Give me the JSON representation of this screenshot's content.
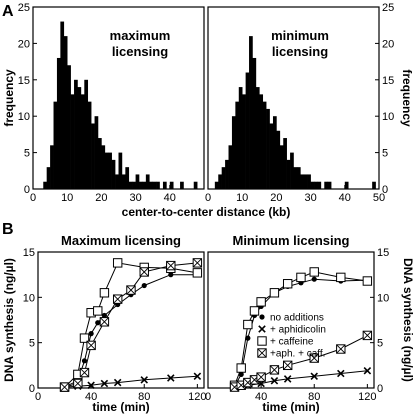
{
  "panel_labels": {
    "a": "A",
    "b": "B"
  },
  "chart_data": [
    {
      "type": "bar",
      "panel": "A-left",
      "title": "maximum licensing",
      "title_lines": [
        "maximum",
        "licensing"
      ],
      "xlabel": "center-to-center distance (kb)",
      "ylabel": "frequency",
      "xlim": [
        0,
        50
      ],
      "ylim": [
        0,
        25
      ],
      "xticks": [
        "0",
        "10",
        "20",
        "30",
        "40"
      ],
      "yticks": [
        "0",
        "5",
        "10",
        "15",
        "20",
        "25"
      ],
      "bin_width": 1,
      "bins": [
        3,
        4,
        5,
        6,
        7,
        8,
        9,
        10,
        11,
        12,
        13,
        14,
        15,
        16,
        17,
        18,
        19,
        20,
        21,
        22,
        23,
        24,
        25,
        26,
        27,
        28,
        29,
        30,
        31,
        32,
        33,
        34,
        35,
        36,
        37,
        38,
        39,
        40,
        41,
        42,
        43,
        44,
        45,
        46,
        47
      ],
      "values": [
        1,
        3,
        6,
        12,
        18,
        23,
        21,
        17,
        13,
        15,
        14,
        13,
        15,
        12,
        9,
        10,
        7,
        6,
        5,
        5,
        4,
        2,
        5,
        2,
        3,
        1,
        1,
        2,
        1,
        1,
        2,
        1,
        1,
        1,
        0,
        1,
        0,
        1,
        0,
        0,
        1,
        0,
        0,
        0,
        1
      ]
    },
    {
      "type": "bar",
      "panel": "A-right",
      "title": "minimum licensing",
      "title_lines": [
        "minimum",
        "licensing"
      ],
      "xlabel": "center-to-center distance (kb)",
      "ylabel": "frequency",
      "xlim": [
        0,
        50
      ],
      "ylim": [
        0,
        25
      ],
      "xticks": [
        "0",
        "10",
        "20",
        "30",
        "40",
        "50"
      ],
      "yticks": [
        "0",
        "5",
        "10",
        "15",
        "20",
        "25"
      ],
      "bin_width": 1,
      "bins": [
        2,
        3,
        4,
        5,
        6,
        7,
        8,
        9,
        10,
        11,
        12,
        13,
        14,
        15,
        16,
        17,
        18,
        19,
        20,
        21,
        22,
        23,
        24,
        25,
        26,
        27,
        28,
        29,
        30,
        31,
        32,
        33,
        34,
        35,
        36,
        37,
        38,
        39,
        40,
        41,
        42,
        43,
        44,
        45,
        46,
        47,
        48,
        49
      ],
      "values": [
        1,
        2,
        3,
        4,
        6,
        10,
        12,
        14,
        13,
        16,
        21,
        18,
        14,
        13,
        12,
        11,
        9,
        10,
        8,
        6,
        7,
        4,
        5,
        3,
        3,
        2,
        2,
        2,
        1,
        1,
        1,
        0,
        1,
        1,
        0,
        0,
        0,
        0,
        1,
        0,
        0,
        0,
        0,
        0,
        0,
        0,
        1,
        0
      ]
    },
    {
      "type": "line",
      "panel": "B-left",
      "title": "Maximum licensing",
      "xlabel": "time (min)",
      "ylabel": "DNA synthesis (ng/µl)",
      "xlim": [
        0,
        125
      ],
      "ylim": [
        0,
        15
      ],
      "xticks": [
        "0",
        "40",
        "80",
        "120"
      ],
      "yticks": [
        "0",
        "5",
        "10",
        "15"
      ],
      "series": [
        {
          "name": "no additions",
          "marker": "dot",
          "x": [
            20,
            30,
            35,
            40,
            45,
            50,
            60,
            70,
            80,
            100,
            120
          ],
          "y": [
            0.1,
            0.8,
            3.0,
            6.0,
            7.2,
            8.0,
            9.2,
            10.3,
            11.3,
            12.5,
            12.5
          ]
        },
        {
          "name": "+ aphidicolin",
          "marker": "cross",
          "x": [
            20,
            30,
            40,
            50,
            60,
            80,
            100,
            120
          ],
          "y": [
            0.1,
            0.2,
            0.3,
            0.5,
            0.6,
            0.9,
            1.1,
            1.3
          ]
        },
        {
          "name": "+ caffeine",
          "marker": "square",
          "x": [
            20,
            30,
            35,
            40,
            45,
            50,
            60,
            80,
            100,
            120
          ],
          "y": [
            0.1,
            1.5,
            5.5,
            8.3,
            8.5,
            10.5,
            13.8,
            13.3,
            13.2,
            12.7
          ]
        },
        {
          "name": "+aph. + caff.",
          "marker": "xbox",
          "x": [
            20,
            30,
            35,
            40,
            50,
            60,
            70,
            80,
            100,
            120
          ],
          "y": [
            0.1,
            0.5,
            1.7,
            4.7,
            7.3,
            9.8,
            10.8,
            12.8,
            13.5,
            13.8
          ]
        }
      ]
    },
    {
      "type": "line",
      "panel": "B-right",
      "title": "Minimum licensing",
      "xlabel": "time (min)",
      "ylabel": "DNA synthesis (ng/µl)",
      "xlim": [
        0,
        125
      ],
      "ylim": [
        0,
        15
      ],
      "xticks": [
        "0",
        "40",
        "80",
        "120"
      ],
      "yticks": [
        "0",
        "5",
        "10",
        "15"
      ],
      "series": [
        {
          "name": "no additions",
          "marker": "dot",
          "x": [
            20,
            25,
            30,
            35,
            40,
            50,
            60,
            70,
            80,
            100,
            120
          ],
          "y": [
            0.2,
            1.5,
            5.5,
            8.0,
            9.0,
            10.5,
            11.2,
            11.6,
            12.0,
            11.8,
            11.9
          ]
        },
        {
          "name": "+ aphidicolin",
          "marker": "cross",
          "x": [
            20,
            30,
            40,
            50,
            60,
            80,
            100,
            120
          ],
          "y": [
            0.1,
            0.3,
            0.5,
            0.8,
            1.0,
            1.3,
            1.6,
            1.9
          ]
        },
        {
          "name": "+ caffeine",
          "marker": "square",
          "x": [
            20,
            25,
            30,
            35,
            40,
            50,
            60,
            70,
            80,
            100,
            120
          ],
          "y": [
            0.3,
            2.2,
            7.0,
            8.5,
            9.5,
            10.5,
            11.5,
            12.2,
            12.8,
            12.2,
            11.8
          ]
        },
        {
          "name": "+aph. + caff.",
          "marker": "xbox",
          "x": [
            20,
            25,
            30,
            35,
            40,
            50,
            60,
            80,
            100,
            120
          ],
          "y": [
            0.1,
            0.3,
            0.6,
            0.9,
            1.2,
            2.0,
            2.5,
            3.3,
            4.3,
            5.8
          ]
        }
      ]
    }
  ]
}
